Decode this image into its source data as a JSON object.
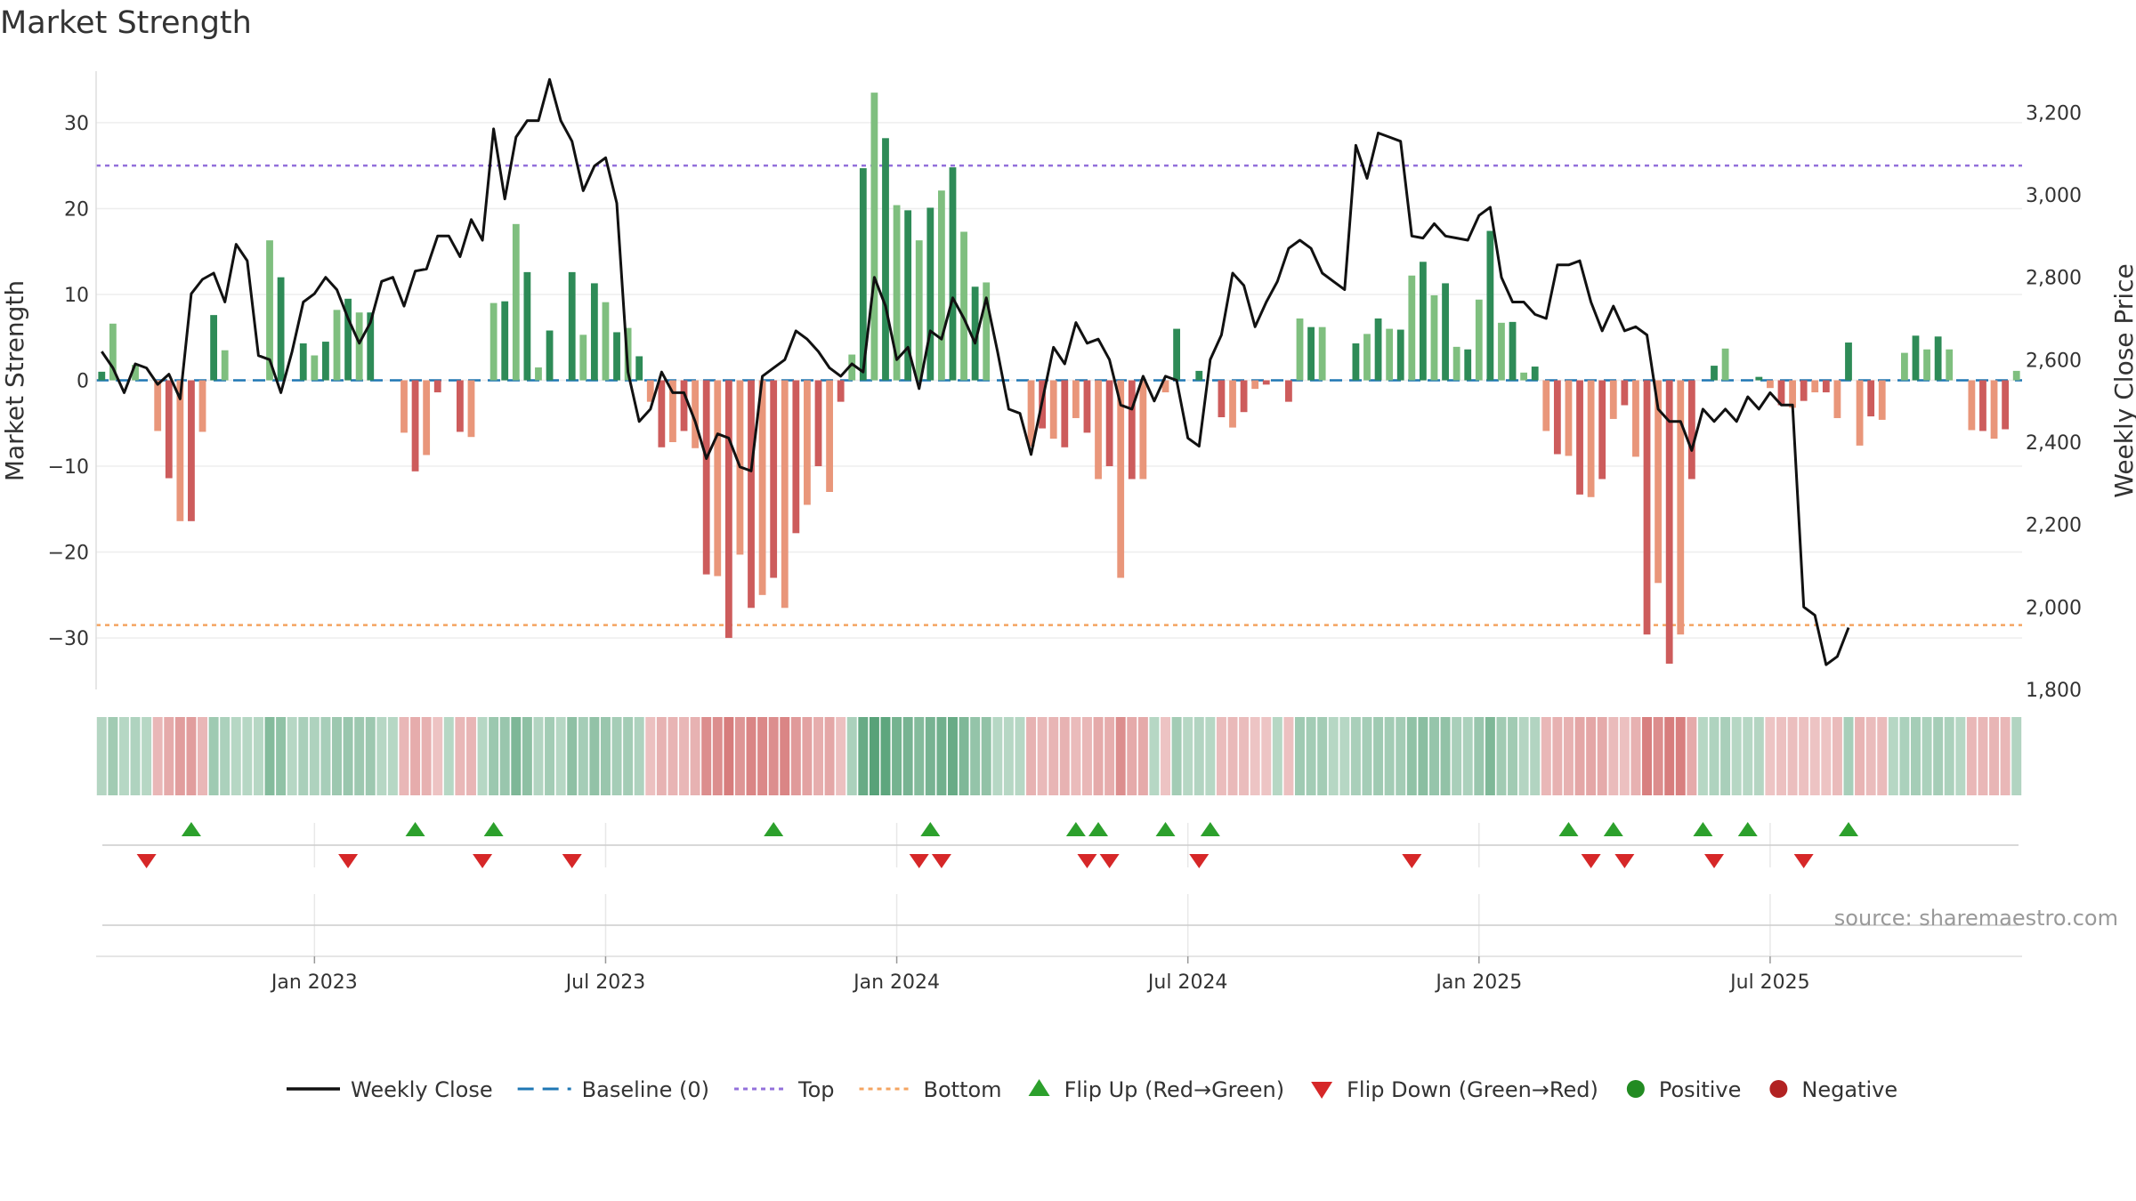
{
  "title": "Market Strength",
  "source": "source: sharemaestro.com",
  "chart_data": {
    "type": "bar",
    "title": "Market Strength",
    "ylabel": "Market Strength",
    "y2label": "Weekly Close Price",
    "ylim": [
      -36,
      36
    ],
    "y2lim": [
      1800,
      3300
    ],
    "yticks": [
      30,
      20,
      10,
      0,
      -10,
      -20,
      -30
    ],
    "yticklabels": [
      "30",
      "20",
      "10",
      "0",
      "−10",
      "−20",
      "−30"
    ],
    "y2ticks": [
      3200,
      3000,
      2800,
      2600,
      2400,
      2200,
      2000,
      1800
    ],
    "y2ticklabels": [
      "3,200",
      "3,000",
      "2,800",
      "2,600",
      "2,400",
      "2,200",
      "2,000",
      "1,800"
    ],
    "xticklabels": [
      "Jan 2023",
      "Jul 2023",
      "Jan 2024",
      "Jul 2024",
      "Jan 2025",
      "Jul 2025"
    ],
    "xtick_week_index": [
      19,
      45,
      71,
      97,
      123,
      149
    ],
    "top_level": 25,
    "bottom_level": -28.5,
    "strength": [
      1,
      6.6,
      0,
      1.8,
      0,
      -5.9,
      -11.4,
      -16.4,
      -16.4,
      -6,
      7.6,
      3.5,
      0,
      0,
      0,
      16.3,
      12,
      0,
      4.3,
      2.9,
      4.5,
      8.2,
      9.5,
      7.9,
      7.9,
      0,
      0,
      -6.1,
      -10.6,
      -8.7,
      -1.4,
      0,
      -6,
      -6.6,
      0,
      9,
      9.2,
      18.2,
      12.6,
      1.5,
      5.8,
      0,
      12.6,
      5.3,
      11.3,
      9.1,
      5.6,
      6.1,
      2.8,
      -2.5,
      -7.8,
      -7.2,
      -5.9,
      -7.9,
      -22.6,
      -22.8,
      -30,
      -20.3,
      -26.5,
      -25,
      -23,
      -26.5,
      -17.8,
      -14.5,
      -10,
      -13,
      -2.5,
      3,
      24.7,
      33.5,
      28.2,
      20.4,
      19.8,
      16.3,
      20.1,
      22.1,
      24.8,
      17.3,
      10.9,
      11.4,
      0,
      0,
      0,
      -7.7,
      -5.6,
      -6.8,
      -7.8,
      -4.4,
      -6.1,
      -11.5,
      -10,
      -23,
      -11.5,
      -11.5,
      0,
      -1.4,
      6,
      0,
      1.1,
      0,
      -4.3,
      -5.5,
      -3.7,
      -1,
      -0.5,
      0,
      -2.5,
      7.2,
      6.2,
      6.2,
      0,
      0,
      4.3,
      5.4,
      7.2,
      6,
      5.9,
      12.2,
      13.8,
      9.9,
      11.3,
      3.9,
      3.6,
      9.4,
      17.4,
      6.7,
      6.8,
      0.9,
      1.6,
      -5.9,
      -8.6,
      -8.8,
      -13.3,
      -13.6,
      -11.5,
      -4.5,
      -2.9,
      -8.9,
      -29.6,
      -23.6,
      -33,
      -29.6,
      -11.5,
      0,
      1.7,
      3.7,
      0,
      0,
      0.4,
      -0.9,
      -2.9,
      -3.2,
      -2.4,
      -1.4,
      -1.4,
      -4.4,
      4.4,
      -7.6,
      -4.2,
      -4.6,
      0,
      3.2,
      5.2,
      3.6,
      5.1,
      3.6,
      0,
      -5.8,
      -5.9,
      -6.8,
      -5.7,
      1.1
    ],
    "weekly_close": [
      2620,
      2580,
      2520,
      2590,
      2580,
      2540,
      2565,
      2505,
      2760,
      2795,
      2810,
      2740,
      2880,
      2840,
      2610,
      2600,
      2520,
      2620,
      2740,
      2760,
      2800,
      2770,
      2700,
      2640,
      2690,
      2790,
      2800,
      2730,
      2815,
      2820,
      2900,
      2900,
      2850,
      2940,
      2890,
      3160,
      2990,
      3140,
      3180,
      3180,
      3280,
      3180,
      3130,
      3010,
      3070,
      3090,
      2980,
      2570,
      2450,
      2480,
      2570,
      2520,
      2520,
      2450,
      2360,
      2420,
      2410,
      2340,
      2330,
      2560,
      2580,
      2600,
      2670,
      2650,
      2620,
      2580,
      2560,
      2590,
      2570,
      2800,
      2730,
      2600,
      2630,
      2530,
      2670,
      2650,
      2750,
      2700,
      2640,
      2750,
      2620,
      2480,
      2470,
      2370,
      2500,
      2630,
      2590,
      2690,
      2640,
      2650,
      2600,
      2490,
      2480,
      2560,
      2500,
      2560,
      2550,
      2410,
      2390,
      2600,
      2660,
      2810,
      2780,
      2680,
      2740,
      2790,
      2870,
      2890,
      2870,
      2810,
      2790,
      2770,
      3120,
      3040,
      3150,
      3140,
      3130,
      2900,
      2895,
      2930,
      2900,
      2895,
      2890,
      2950,
      2970,
      2800,
      2740,
      2740,
      2710,
      2700,
      2830,
      2830,
      2840,
      2740,
      2670,
      2730,
      2670,
      2680,
      2660,
      2480,
      2450,
      2450,
      2380,
      2480,
      2450,
      2480,
      2450,
      2510,
      2480,
      2520,
      2490,
      2490,
      2000,
      1980,
      1860,
      1880,
      1950
    ],
    "flip_up_week_index": [
      8,
      28,
      35,
      60,
      74,
      87,
      89,
      95,
      99,
      131,
      135,
      143,
      147,
      156
    ],
    "flip_down_week_index": [
      4,
      22,
      34,
      42,
      73,
      75,
      88,
      90,
      98,
      117,
      133,
      136,
      144,
      152
    ],
    "legend": [
      "Weekly Close",
      "Baseline (0)",
      "Top",
      "Bottom",
      "Flip Up (Red→Green)",
      "Flip Down (Green→Red)",
      "Positive",
      "Negative"
    ],
    "legend_placement": "bottom",
    "grid": true
  },
  "colors": {
    "green_strong": "#2e8b57",
    "green_light": "#7fbf7f",
    "red_strong": "#cd5c5c",
    "red_light": "#e9967a",
    "top_line": "#9370db",
    "bottom_line": "#f4a460",
    "baseline": "#1f77b4",
    "close_line": "#111111",
    "flip_up": "#2ca02c",
    "flip_down": "#d62728",
    "positive": "#228b22",
    "negative": "#b22222"
  }
}
